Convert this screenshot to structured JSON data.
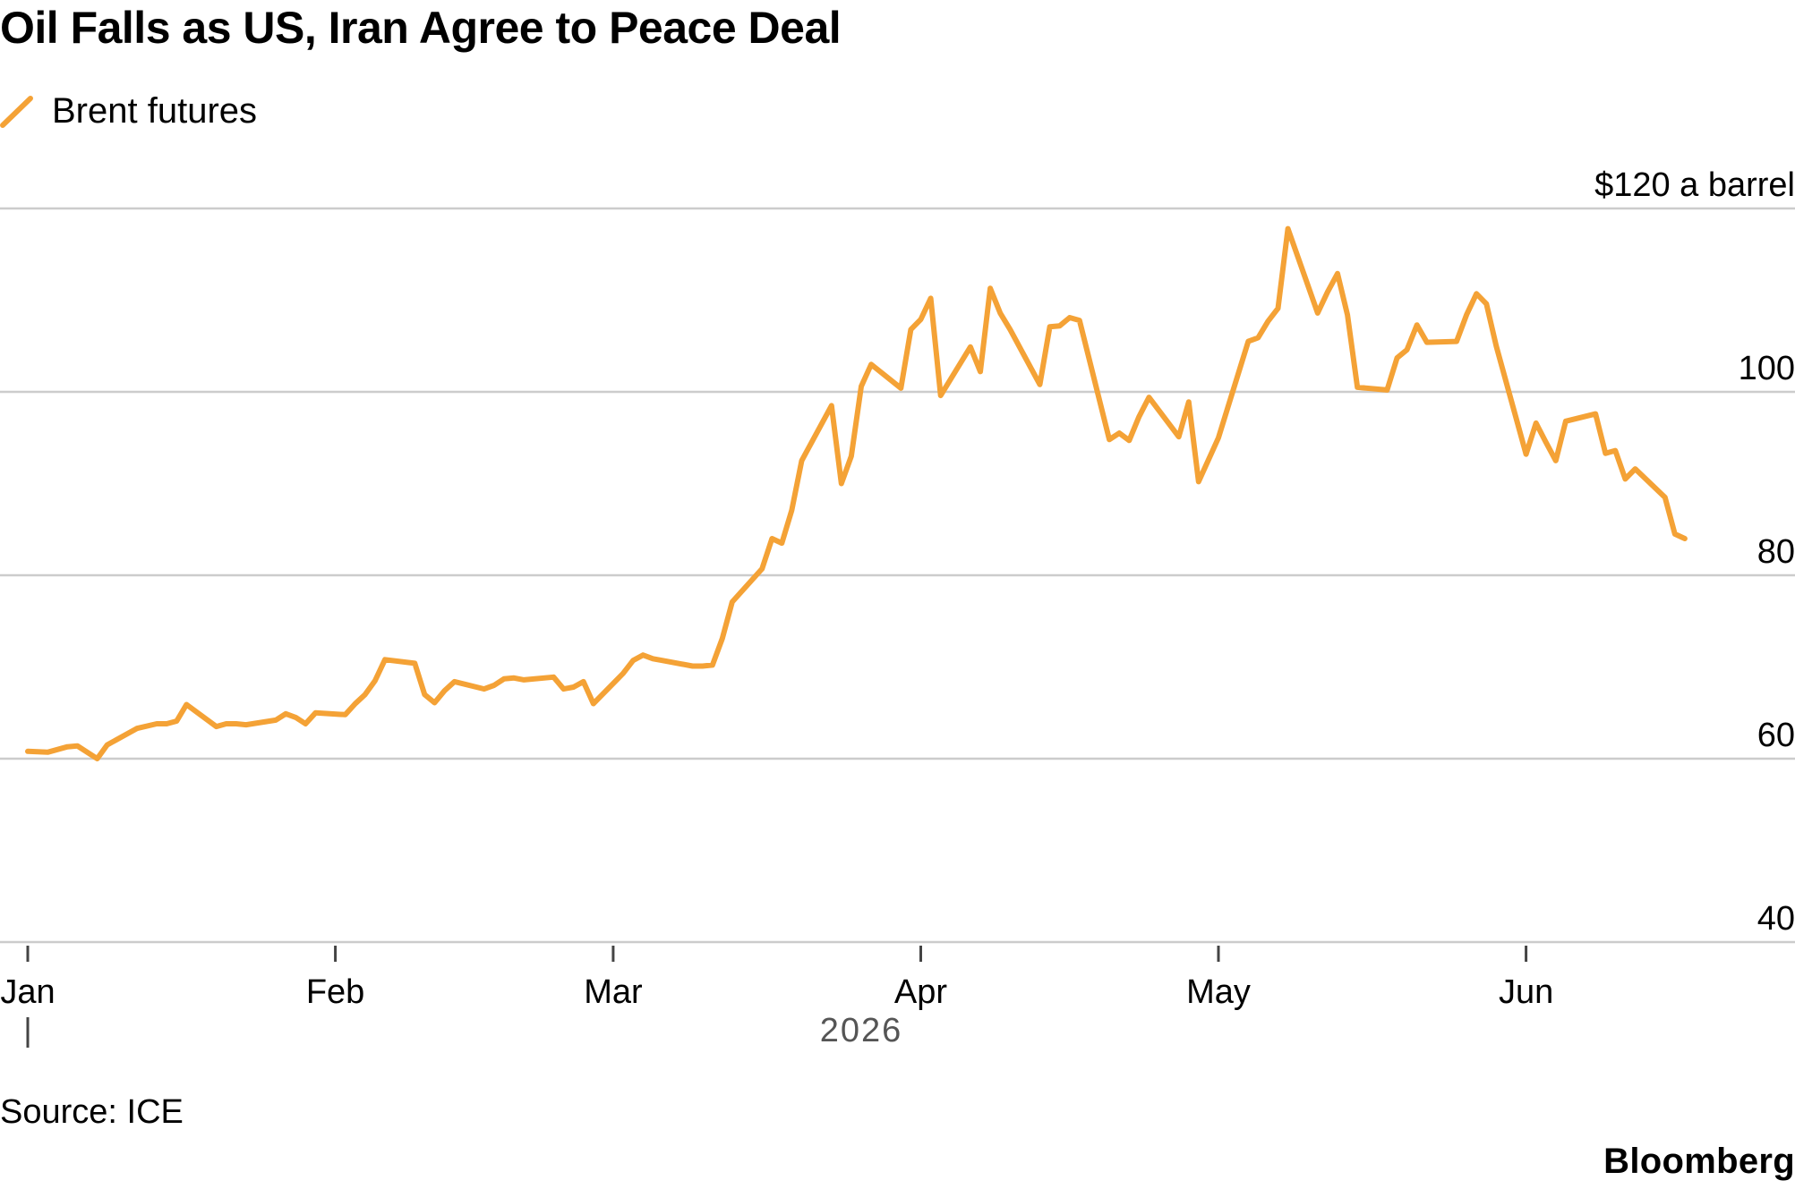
{
  "title": "Oil Falls as US, Iran Agree to Peace Deal",
  "legend": {
    "label": "Brent futures"
  },
  "source": "Source: ICE",
  "brand": "Bloomberg",
  "colors": {
    "series": "#f4a236",
    "grid": "#cccccc",
    "axis": "#444444",
    "text": "#000000"
  },
  "chart_data": {
    "type": "line",
    "title": "Oil Falls as US, Iran Agree to Peace Deal",
    "xlabel": "2026",
    "ylabel": "",
    "y_unit_label": "$120 a barrel",
    "ylim": [
      40,
      120
    ],
    "yticks": [
      {
        "value": 120,
        "label": "$120 a barrel"
      },
      {
        "value": 100,
        "label": "100"
      },
      {
        "value": 80,
        "label": "80"
      },
      {
        "value": 60,
        "label": "60"
      },
      {
        "value": 40,
        "label": "40"
      }
    ],
    "xlim": [
      "2026-01-01",
      "2026-06-18"
    ],
    "xticks": [
      {
        "date": "2026-01-01",
        "label": "Jan"
      },
      {
        "date": "2026-02-01",
        "label": "Feb"
      },
      {
        "date": "2026-03-01",
        "label": "Mar"
      },
      {
        "date": "2026-04-01",
        "label": "Apr"
      },
      {
        "date": "2026-05-01",
        "label": "May"
      },
      {
        "date": "2026-06-01",
        "label": "Jun"
      }
    ],
    "year_label": "2026",
    "grid": true,
    "legend_position": "top-left",
    "series": [
      {
        "name": "Brent futures",
        "color": "#f4a236",
        "x": [
          "2026-01-01",
          "2026-01-03",
          "2026-01-05",
          "2026-01-06",
          "2-01-08",
          "2026-01-09",
          "2026-01-12",
          "2026-01-14",
          "2026-01-15",
          "2026-01-16",
          "2026-01-17",
          "2026-01-20",
          "2026-01-21",
          "2026-01-22",
          "2026-01-23",
          "2026-01-26",
          "2026-01-27",
          "2026-01-28",
          "2026-01-29",
          "2026-01-30",
          "2026-02-02",
          "2026-02-03",
          "2026-02-04",
          "2026-02-05",
          "2026-02-06",
          "2026-02-09",
          "2026-02-10",
          "2026-02-11",
          "2026-02-12",
          "2026-02-13",
          "2026-02-16",
          "2026-02-17",
          "2026-02-18",
          "2026-02-19",
          "2026-02-20",
          "2026-02-23",
          "2026-02-24",
          "2026-02-25",
          "2026-02-26",
          "2026-02-27",
          "2026-03-02",
          "2026-03-03",
          "2026-03-04",
          "2026-03-05",
          "2026-03-06",
          "2026-03-09",
          "2026-03-10",
          "2026-03-11",
          "2026-03-12",
          "2026-03-13",
          "2026-03-16",
          "2026-03-17",
          "2026-03-18",
          "2026-03-19",
          "2026-03-20",
          "2026-03-23",
          "2026-03-24",
          "2026-03-25",
          "2026-03-26",
          "2026-03-27",
          "2026-03-30",
          "2026-03-31",
          "2026-04-01",
          "2026-04-02",
          "2026-04-03",
          "2026-04-06",
          "2026-04-07",
          "2026-04-08",
          "2026-04-09",
          "2026-04-10",
          "2026-04-13",
          "2026-04-14",
          "2026-04-15",
          "2026-04-16",
          "2026-04-17",
          "2026-04-20",
          "2026-04-21",
          "2026-04-22",
          "2026-04-23",
          "2026-04-24",
          "2026-04-27",
          "2026-04-28",
          "2026-04-29",
          "2026-04-30",
          "2026-05-01",
          "2026-05-04",
          "2026-05-05",
          "2026-05-06",
          "2026-05-07",
          "2026-05-08",
          "2026-05-11",
          "2026-05-12",
          "2026-05-13",
          "2026-05-14",
          "2026-05-15",
          "2026-05-18",
          "2026-05-19",
          "2026-05-20",
          "2026-05-21",
          "2026-05-22",
          "2026-05-25",
          "2026-05-26",
          "2026-05-27",
          "2026-05-28",
          "2026-05-29",
          "2026-06-01",
          "2026-06-02",
          "2026-06-03",
          "2026-06-04",
          "2026-06-05",
          "2026-06-08",
          "2026-06-09",
          "2026-06-10",
          "2026-06-11",
          "2026-06-12",
          "2026-06-15",
          "2026-06-16",
          "2026-06-17"
        ],
        "y": [
          60.8,
          60.7,
          61.3,
          61.4,
          60.0,
          61.5,
          63.3,
          63.8,
          63.8,
          64.1,
          65.9,
          63.5,
          63.8,
          63.8,
          63.7,
          64.2,
          64.9,
          64.5,
          63.8,
          65.0,
          64.8,
          66.0,
          67.0,
          68.5,
          70.8,
          70.4,
          67.0,
          66.1,
          67.4,
          68.4,
          67.6,
          68.0,
          68.7,
          68.8,
          68.6,
          68.9,
          67.6,
          67.8,
          68.4,
          66.0,
          69.3,
          70.7,
          71.3,
          70.9,
          70.7,
          70.1,
          70.1,
          70.2,
          73.1,
          77.1,
          80.7,
          84.0,
          83.5,
          87.1,
          92.5,
          98.5,
          90.0,
          93.0,
          100.6,
          103.0,
          100.4,
          106.8,
          107.9,
          110.2,
          99.6,
          104.9,
          102.2,
          111.3,
          108.6,
          106.8,
          100.8,
          107.1,
          107.2,
          108.1,
          107.8,
          94.8,
          95.5,
          94.7,
          97.3,
          99.4,
          95.1,
          98.9,
          90.2,
          92.6,
          95.0,
          105.5,
          105.9,
          107.7,
          109.1,
          117.8,
          108.6,
          110.9,
          112.9,
          108.4,
          100.5,
          100.2,
          103.7,
          104.6,
          107.3,
          105.4,
          105.5,
          108.4,
          110.7,
          109.6,
          105.0,
          93.2,
          96.6,
          94.5,
          92.5,
          96.8,
          97.6,
          93.3,
          93.6,
          90.5,
          91.6,
          88.5,
          84.5,
          84.0
        ]
      }
    ]
  }
}
